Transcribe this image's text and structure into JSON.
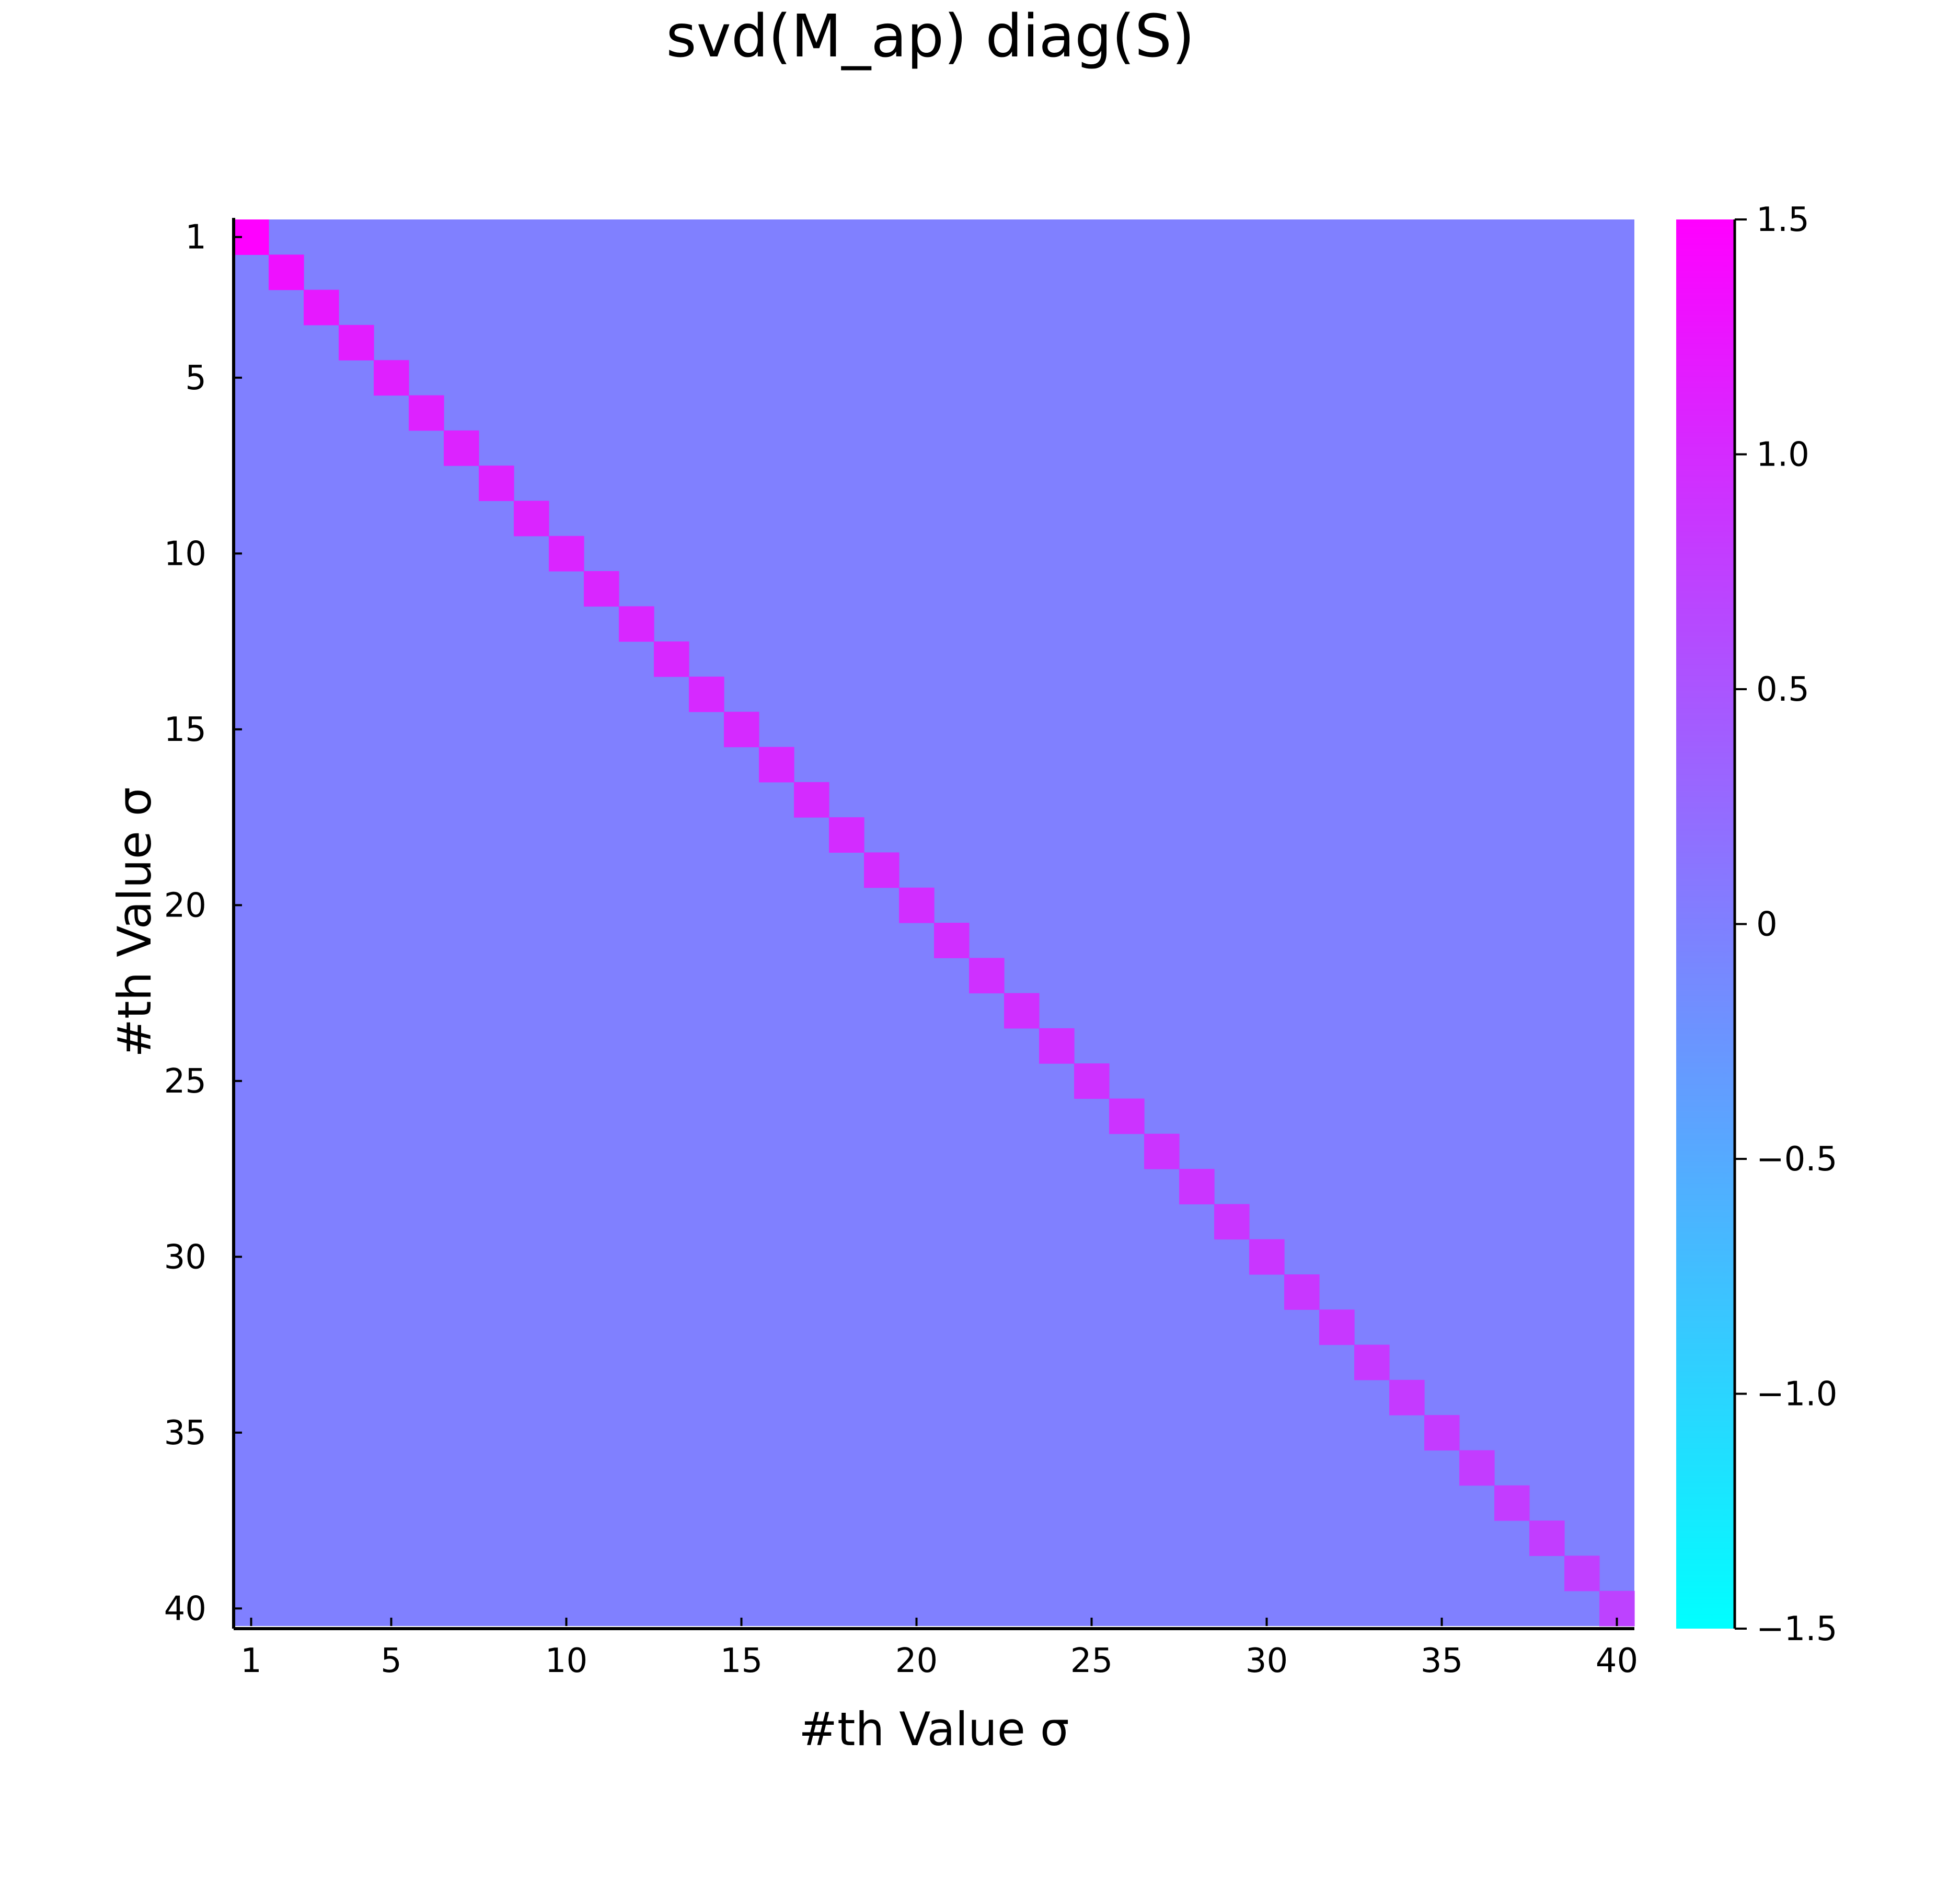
{
  "chart_data": {
    "type": "heatmap",
    "title": "svd(M_ap) diag(S)",
    "xlabel": "#th Value σ",
    "ylabel": "#th Value σ",
    "n": 40,
    "x_ticks": [
      1,
      5,
      10,
      15,
      20,
      25,
      30,
      35,
      40
    ],
    "y_ticks": [
      1,
      5,
      10,
      15,
      20,
      25,
      30,
      35,
      40
    ],
    "off_diagonal_value": 0,
    "diagonal_values": [
      1.49,
      1.3,
      1.2,
      1.15,
      1.12,
      1.1,
      1.09,
      1.08,
      1.07,
      1.06,
      1.05,
      1.04,
      1.03,
      1.02,
      1.01,
      1.0,
      0.99,
      0.98,
      0.97,
      0.96,
      0.95,
      0.94,
      0.93,
      0.92,
      0.91,
      0.9,
      0.89,
      0.88,
      0.87,
      0.86,
      0.85,
      0.84,
      0.83,
      0.82,
      0.81,
      0.8,
      0.79,
      0.78,
      0.76,
      0.72
    ],
    "colorbar": {
      "range": [
        -1.5,
        1.5
      ],
      "ticks": [
        1.5,
        1.0,
        0.5,
        0,
        -0.5,
        -1.0,
        -1.5
      ],
      "tick_labels": [
        "1.5",
        "1.0",
        "0.5",
        "0",
        "−0.5",
        "−1.0",
        "−1.5"
      ],
      "colormap": "cool",
      "low_color": "#00FFFF",
      "high_color": "#FF00FF"
    },
    "grid": false,
    "y_axis_inverted": true
  }
}
